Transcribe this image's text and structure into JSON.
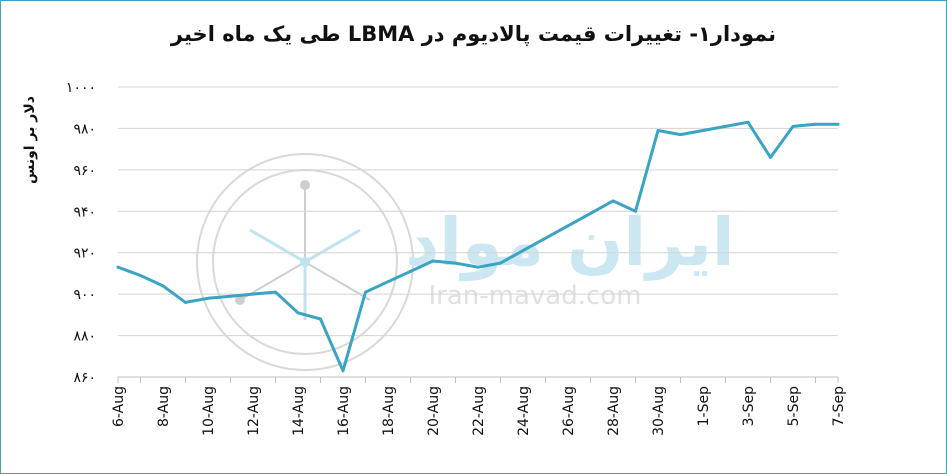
{
  "chart_data": {
    "type": "line",
    "title": "نمودار۱- تغییرات قیمت پالادیوم در LBMA طی یک ماه اخیر",
    "ylabel": "دلار بر اونس",
    "xlabel": "",
    "ylim": [
      860,
      1000
    ],
    "yticks": [
      "۱۰۰۰",
      "۹۸۰",
      "۹۶۰",
      "۹۴۰",
      "۹۲۰",
      "۹۰۰",
      "۸۸۰",
      "۸۶۰"
    ],
    "ytick_values": [
      1000,
      980,
      960,
      940,
      920,
      900,
      880,
      860
    ],
    "categories": [
      "6-Aug",
      "8-Aug",
      "10-Aug",
      "12-Aug",
      "14-Aug",
      "16-Aug",
      "18-Aug",
      "20-Aug",
      "22-Aug",
      "24-Aug",
      "26-Aug",
      "28-Aug",
      "30-Aug",
      "1-Sep",
      "3-Sep",
      "5-Sep",
      "7-Sep"
    ],
    "grid": true,
    "color": "#3ba3c3",
    "series": [
      {
        "x": [
          "6-Aug",
          "7-Aug",
          "8-Aug",
          "9-Aug",
          "10-Aug",
          "11-Aug",
          "12-Aug",
          "13-Aug",
          "14-Aug",
          "15-Aug",
          "16-Aug",
          "17-Aug",
          "18-Aug",
          "19-Aug",
          "20-Aug",
          "21-Aug",
          "22-Aug",
          "23-Aug",
          "24-Aug",
          "25-Aug",
          "26-Aug",
          "27-Aug",
          "28-Aug",
          "29-Aug",
          "30-Aug",
          "31-Aug",
          "1-Sep",
          "2-Sep",
          "3-Sep",
          "4-Sep",
          "5-Sep",
          "6-Sep",
          "7-Sep"
        ],
        "values": [
          913,
          909,
          904,
          896,
          898,
          899,
          900,
          901,
          891,
          888,
          863,
          901,
          906,
          911,
          916,
          915,
          913,
          915,
          921,
          927,
          933,
          939,
          945,
          940,
          979,
          977,
          979,
          981,
          983,
          966,
          981,
          982,
          982
        ]
      }
    ]
  },
  "watermark": {
    "brand": "ایران مواد",
    "site": "Iran-mavad.com"
  }
}
